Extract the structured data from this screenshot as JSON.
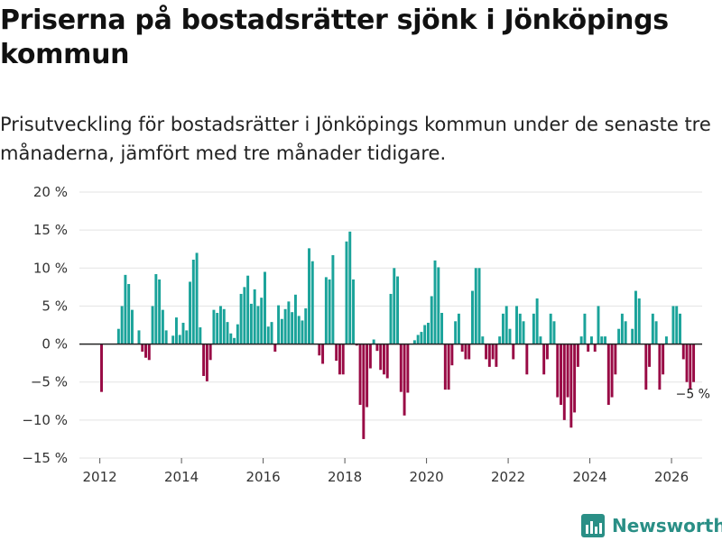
{
  "title": "Priserna på bostadsrätter sjönk i Jönköpings kommun",
  "subtitle": "Prisutveckling för bostadsrätter i Jönköpings kommun under de senaste tre månaderna, jämfört med tre månader tidigare.",
  "brand": {
    "name": "Newsworthy",
    "icon": "newsworthy-logo-icon"
  },
  "colors": {
    "positive": "#1aa39a",
    "negative": "#990a45",
    "grid": "#e3e3e3",
    "zero": "#222222",
    "brand": "#2a8f86"
  },
  "chart_data": {
    "type": "bar",
    "title": "Priserna på bostadsrätter sjönk i Jönköpings kommun",
    "xlabel": "",
    "ylabel": "",
    "ylim": [
      -15,
      20
    ],
    "yticks": [
      20,
      15,
      10,
      5,
      0,
      -5,
      -10,
      -15
    ],
    "ytick_labels": [
      "20 %",
      "15 %",
      "10 %",
      "5 %",
      "0 %",
      "−5 %",
      "−10 %",
      "−15 %"
    ],
    "xlim": [
      2011.5,
      2026.75
    ],
    "xticks": [
      2012,
      2014,
      2016,
      2018,
      2020,
      2022,
      2024,
      2026
    ],
    "xtick_labels": [
      "2012",
      "2014",
      "2016",
      "2018",
      "2020",
      "2022",
      "2024",
      "2026"
    ],
    "grid": true,
    "start": "2012-01",
    "frequency": "monthly",
    "end_label": "−5 %",
    "values": [
      -6.3,
      0,
      0,
      0,
      0,
      2,
      5,
      9.1,
      7.9,
      4.5,
      0,
      1.8,
      -1,
      -1.8,
      -2.1,
      5,
      9.2,
      8.5,
      4.5,
      1.8,
      0,
      1.1,
      3.5,
      1.2,
      2.8,
      1.8,
      8.2,
      11.1,
      12,
      2.2,
      -4.2,
      -4.9,
      -2.1,
      4.5,
      4.1,
      5,
      4.6,
      2.9,
      1.4,
      0.8,
      2.6,
      6.6,
      7.5,
      9,
      5.3,
      7.2,
      5,
      6.1,
      9.5,
      2.3,
      2.9,
      -1,
      5.1,
      3.3,
      4.6,
      5.6,
      4.2,
      6.5,
      3.7,
      3.1,
      4.7,
      12.6,
      10.9,
      0,
      -1.5,
      -2.6,
      8.8,
      8.5,
      11.7,
      -2.2,
      -4,
      -4,
      13.5,
      14.8,
      8.5,
      -0.2,
      -8,
      -12.5,
      -8.3,
      -3.2,
      0.6,
      -0.9,
      -3.4,
      -4,
      -4.5,
      6.6,
      10,
      8.9,
      -6.3,
      -9.4,
      -6.4,
      0,
      0.5,
      1.2,
      1.6,
      2.5,
      2.8,
      6.3,
      11,
      10.1,
      4.1,
      -6,
      -6,
      -2.8,
      3,
      4,
      -1,
      -2,
      -2,
      7,
      10,
      10,
      1,
      -2,
      -3,
      -2,
      -3,
      1,
      4,
      5,
      2,
      -2,
      5,
      4,
      3,
      -4,
      0,
      4,
      6,
      1,
      -4,
      -2,
      4,
      3,
      -7,
      -8,
      -10,
      -7,
      -11,
      -9,
      -3,
      1,
      4,
      -1,
      1,
      -1,
      5,
      1,
      1,
      -8,
      -7,
      -4,
      2,
      4,
      3,
      0,
      2,
      7,
      6,
      0,
      -6,
      -3,
      4,
      3,
      -6,
      -4,
      1,
      0,
      5,
      5,
      4,
      -2,
      -5,
      -6,
      -5
    ]
  }
}
